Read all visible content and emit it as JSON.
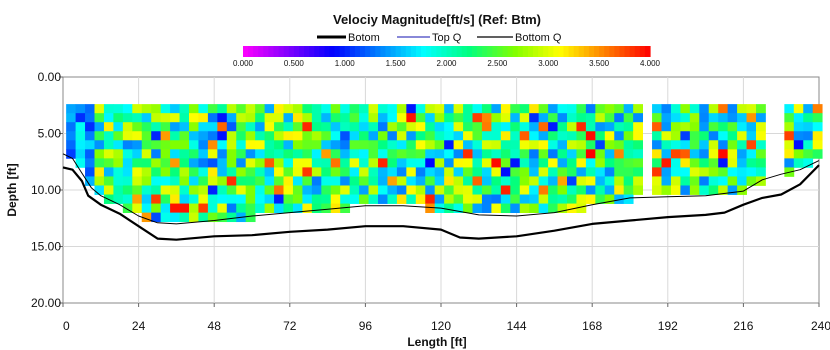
{
  "chart_data": {
    "type": "heatmap",
    "title": "Velociy Magnitude[ft/s] (Ref: Btm)",
    "xlabel": "Length [ft]",
    "ylabel": "Depth [ft]",
    "xlim": [
      0,
      240
    ],
    "ylim": [
      20,
      0
    ],
    "x_ticks": [
      "0",
      "24",
      "48",
      "72",
      "96",
      "120",
      "144",
      "168",
      "192",
      "216",
      "240"
    ],
    "y_ticks": [
      "0.00",
      "5.00",
      "10.00",
      "15.00",
      "20.00"
    ],
    "legend": [
      "Botom",
      "Top Q",
      "Bottom Q"
    ],
    "colorbar": {
      "min": 0,
      "max": 4,
      "ticks": [
        "0.000",
        "0.500",
        "1.000",
        "1.500",
        "2.000",
        "2.500",
        "3.000",
        "3.500",
        "4.000"
      ],
      "colors": [
        "#ff00ff",
        "#8000ff",
        "#0000ff",
        "#0080ff",
        "#00ffff",
        "#00ff80",
        "#80ff00",
        "#ffff00",
        "#ff8000",
        "#ff0000"
      ]
    },
    "bottom_line_x": [
      0,
      3,
      6,
      8,
      12,
      18,
      24,
      30,
      36,
      48,
      60,
      72,
      84,
      96,
      108,
      120,
      126,
      132,
      144,
      156,
      168,
      180,
      192,
      204,
      210,
      216,
      222,
      228,
      234,
      240
    ],
    "bottom_line_y": [
      8.0,
      8.2,
      9.2,
      10.5,
      11.3,
      12.1,
      13.2,
      14.3,
      14.4,
      14.1,
      14.0,
      13.7,
      13.5,
      13.2,
      13.2,
      13.5,
      14.2,
      14.3,
      14.1,
      13.6,
      13.0,
      12.7,
      12.4,
      12.2,
      12.0,
      11.3,
      10.7,
      10.4,
      9.5,
      7.8
    ],
    "top_q_x": [
      0,
      3,
      6,
      9,
      12,
      18,
      24,
      30,
      36,
      48,
      60,
      72,
      84,
      96,
      108,
      120,
      132,
      144,
      156,
      168,
      180,
      192,
      204,
      216,
      222,
      228,
      234,
      240
    ],
    "top_q_y": [
      6.8,
      7.2,
      8.5,
      9.8,
      10.5,
      11.3,
      12.3,
      12.9,
      13.0,
      12.7,
      12.3,
      12.0,
      11.7,
      11.4,
      11.4,
      11.6,
      12.2,
      12.3,
      12.0,
      11.3,
      10.7,
      10.6,
      10.5,
      10.1,
      9.1,
      8.6,
      8.2,
      7.4
    ]
  }
}
